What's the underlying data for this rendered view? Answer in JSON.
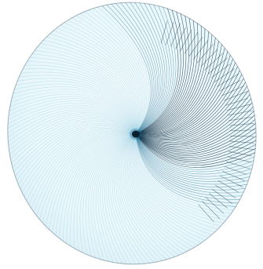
{
  "image": {
    "subject": "string-art-disc",
    "colors": {
      "background": "#ffffff",
      "disc_fill": "#e9f7fb",
      "disc_light": "#f6fcfe",
      "line_dark": "#0b2f45",
      "line_mid": "#1f6f93",
      "line_light": "#7fc0d6",
      "center_dot": "#0b1e2c"
    },
    "icons": [
      "string-art-disc",
      "center-hub-dot"
    ]
  }
}
